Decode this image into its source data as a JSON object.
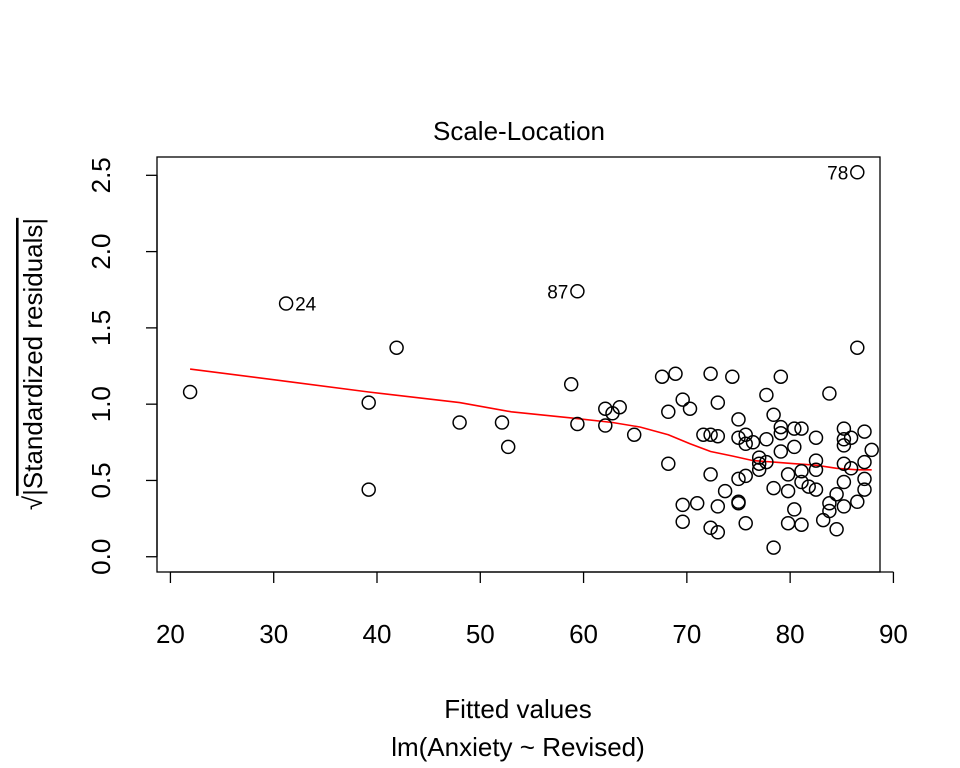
{
  "chart_data": {
    "type": "scatter",
    "title": "Scale-Location",
    "xlabel": "Fitted values",
    "sublabel": "lm(Anxiety ~ Revised)",
    "ylabel_radical": "√",
    "ylabel": "|Standardized residuals|",
    "xlim": [
      18.7,
      88.7
    ],
    "ylim": [
      -0.1,
      2.62
    ],
    "xticks": [
      20,
      30,
      40,
      50,
      60,
      70,
      80,
      90
    ],
    "yticks": [
      0.0,
      0.5,
      1.0,
      1.5,
      2.0,
      2.5
    ],
    "xtick_labels": [
      "20",
      "30",
      "40",
      "50",
      "60",
      "70",
      "80",
      "90"
    ],
    "ytick_labels": [
      "0.0",
      "0.5",
      "1.0",
      "1.5",
      "2.0",
      "2.5"
    ],
    "grid": false,
    "point_style": "open-circle",
    "points": [
      [
        21.9,
        1.08
      ],
      [
        31.2,
        1.66
      ],
      [
        39.2,
        1.01
      ],
      [
        39.2,
        0.44
      ],
      [
        41.9,
        1.37
      ],
      [
        48.0,
        0.88
      ],
      [
        52.1,
        0.88
      ],
      [
        52.7,
        0.72
      ],
      [
        58.8,
        1.13
      ],
      [
        59.4,
        1.74
      ],
      [
        59.4,
        0.87
      ],
      [
        62.1,
        0.97
      ],
      [
        62.1,
        0.86
      ],
      [
        62.8,
        0.94
      ],
      [
        63.5,
        0.98
      ],
      [
        64.9,
        0.8
      ],
      [
        67.6,
        1.18
      ],
      [
        68.2,
        0.95
      ],
      [
        68.2,
        0.61
      ],
      [
        68.9,
        1.2
      ],
      [
        69.6,
        1.03
      ],
      [
        69.6,
        0.34
      ],
      [
        69.6,
        0.23
      ],
      [
        70.3,
        0.97
      ],
      [
        71.0,
        0.35
      ],
      [
        71.6,
        0.8
      ],
      [
        72.3,
        1.2
      ],
      [
        72.3,
        0.8
      ],
      [
        72.3,
        0.54
      ],
      [
        72.3,
        0.19
      ],
      [
        73.0,
        1.01
      ],
      [
        73.0,
        0.79
      ],
      [
        73.0,
        0.33
      ],
      [
        73.0,
        0.16
      ],
      [
        73.7,
        0.43
      ],
      [
        74.4,
        1.18
      ],
      [
        75.0,
        0.9
      ],
      [
        75.0,
        0.78
      ],
      [
        75.0,
        0.51
      ],
      [
        75.0,
        0.36
      ],
      [
        75.0,
        0.35
      ],
      [
        75.7,
        0.8
      ],
      [
        75.7,
        0.74
      ],
      [
        75.7,
        0.53
      ],
      [
        75.7,
        0.22
      ],
      [
        76.4,
        0.75
      ],
      [
        77.0,
        0.65
      ],
      [
        77.0,
        0.61
      ],
      [
        77.0,
        0.57
      ],
      [
        77.7,
        1.06
      ],
      [
        77.7,
        0.77
      ],
      [
        77.7,
        0.62
      ],
      [
        78.4,
        0.93
      ],
      [
        78.4,
        0.45
      ],
      [
        78.4,
        0.06
      ],
      [
        79.1,
        1.18
      ],
      [
        79.1,
        0.85
      ],
      [
        79.1,
        0.81
      ],
      [
        79.1,
        0.69
      ],
      [
        79.8,
        0.54
      ],
      [
        79.8,
        0.43
      ],
      [
        79.8,
        0.22
      ],
      [
        80.4,
        0.84
      ],
      [
        80.4,
        0.72
      ],
      [
        80.4,
        0.31
      ],
      [
        81.1,
        0.84
      ],
      [
        81.1,
        0.56
      ],
      [
        81.1,
        0.49
      ],
      [
        81.1,
        0.21
      ],
      [
        81.8,
        0.46
      ],
      [
        82.5,
        0.78
      ],
      [
        82.5,
        0.63
      ],
      [
        82.5,
        0.57
      ],
      [
        82.5,
        0.44
      ],
      [
        83.2,
        0.24
      ],
      [
        83.8,
        1.07
      ],
      [
        83.8,
        0.35
      ],
      [
        83.8,
        0.3
      ],
      [
        84.5,
        0.41
      ],
      [
        84.5,
        0.18
      ],
      [
        85.2,
        0.84
      ],
      [
        85.2,
        0.77
      ],
      [
        85.2,
        0.73
      ],
      [
        85.2,
        0.61
      ],
      [
        85.2,
        0.49
      ],
      [
        85.2,
        0.33
      ],
      [
        85.9,
        0.78
      ],
      [
        85.9,
        0.58
      ],
      [
        86.5,
        2.52
      ],
      [
        86.5,
        1.37
      ],
      [
        86.5,
        0.36
      ],
      [
        87.2,
        0.82
      ],
      [
        87.2,
        0.62
      ],
      [
        87.2,
        0.51
      ],
      [
        87.2,
        0.44
      ],
      [
        87.9,
        0.7
      ]
    ],
    "point_labels": [
      {
        "text": "24",
        "x": 31.2,
        "y": 1.66,
        "side": "right"
      },
      {
        "text": "87",
        "x": 59.4,
        "y": 1.74,
        "side": "left"
      },
      {
        "text": "78",
        "x": 86.5,
        "y": 2.52,
        "side": "left"
      }
    ],
    "smoother": {
      "color": "#ff0000",
      "x": [
        21.9,
        31.2,
        39.2,
        48.0,
        53.0,
        58.8,
        62.8,
        65.5,
        68.2,
        70.3,
        72.3,
        74.4,
        76.4,
        78.4,
        80.4,
        82.5,
        84.5,
        86.5,
        87.9
      ],
      "y": [
        1.23,
        1.15,
        1.08,
        1.01,
        0.95,
        0.91,
        0.88,
        0.85,
        0.8,
        0.74,
        0.69,
        0.66,
        0.63,
        0.62,
        0.61,
        0.6,
        0.58,
        0.57,
        0.57
      ]
    }
  }
}
